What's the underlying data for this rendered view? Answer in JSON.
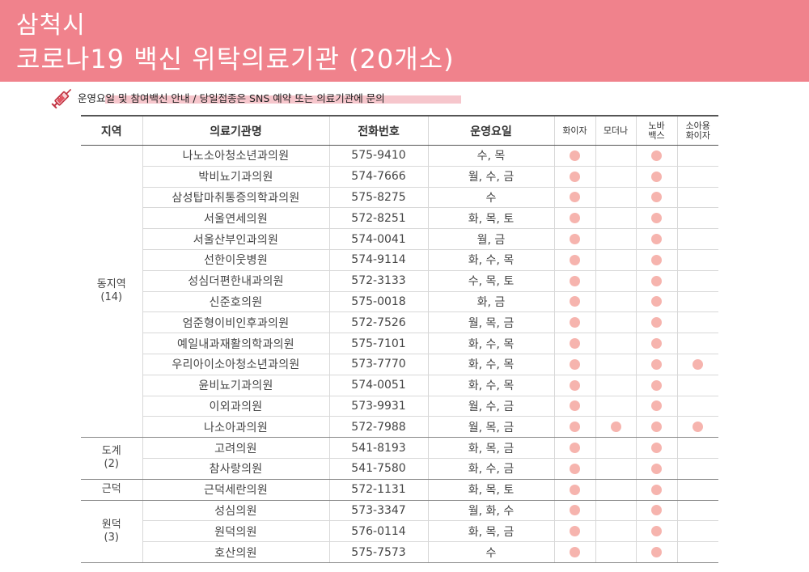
{
  "banner": {
    "line1": "삼척시",
    "line2": "코로나19 백신 위탁의료기관 (20개소)"
  },
  "notice": {
    "text": "운영요일 및 참여백신 안내 / 당일접종은 SNS 예약 또는 의료기관에 문의",
    "icon": "syringe-icon"
  },
  "colors": {
    "banner": "#f0828c",
    "dot": "#f6b4ae"
  },
  "headers": {
    "region": "지역",
    "name": "의료기관명",
    "phone": "전화번호",
    "days": "운영요일",
    "pfizer": "화이자",
    "moderna": "모더나",
    "novavax": "노바\n백스",
    "pfizer_child": "소아용\n화이자"
  },
  "groups": [
    {
      "region": "동지역\n(14)",
      "rows": [
        {
          "name": "나노소아청소년과의원",
          "phone": "575-9410",
          "days": "수, 목",
          "v": [
            1,
            0,
            1,
            0
          ]
        },
        {
          "name": "박비뇨기과의원",
          "phone": "574-7666",
          "days": "월, 수, 금",
          "v": [
            1,
            0,
            1,
            0
          ]
        },
        {
          "name": "삼성탑마취통증의학과의원",
          "phone": "575-8275",
          "days": "수",
          "v": [
            1,
            0,
            1,
            0
          ]
        },
        {
          "name": "서울연세의원",
          "phone": "572-8251",
          "days": "화, 목, 토",
          "v": [
            1,
            0,
            1,
            0
          ]
        },
        {
          "name": "서울산부인과의원",
          "phone": "574-0041",
          "days": "월, 금",
          "v": [
            1,
            0,
            1,
            0
          ]
        },
        {
          "name": "선한이웃병원",
          "phone": "574-9114",
          "days": "화, 수, 목",
          "v": [
            1,
            0,
            1,
            0
          ]
        },
        {
          "name": "성심더편한내과의원",
          "phone": "572-3133",
          "days": "수, 목, 토",
          "v": [
            1,
            0,
            1,
            0
          ]
        },
        {
          "name": "신준호의원",
          "phone": "575-0018",
          "days": "화, 금",
          "v": [
            1,
            0,
            1,
            0
          ]
        },
        {
          "name": "엄준형이비인후과의원",
          "phone": "572-7526",
          "days": "월, 목, 금",
          "v": [
            1,
            0,
            1,
            0
          ]
        },
        {
          "name": "예일내과재활의학과의원",
          "phone": "575-7101",
          "days": "화, 수, 목",
          "v": [
            1,
            0,
            1,
            0
          ]
        },
        {
          "name": "우리아이소아청소년과의원",
          "phone": "573-7770",
          "days": "화, 수, 목",
          "v": [
            1,
            0,
            1,
            1
          ]
        },
        {
          "name": "윤비뇨기과의원",
          "phone": "574-0051",
          "days": "화, 수, 목",
          "v": [
            1,
            0,
            1,
            0
          ]
        },
        {
          "name": "이외과의원",
          "phone": "573-9931",
          "days": "월, 수, 금",
          "v": [
            1,
            0,
            1,
            0
          ]
        },
        {
          "name": "나소아과의원",
          "phone": "572-7988",
          "days": "월, 목, 금",
          "v": [
            1,
            1,
            1,
            1
          ]
        }
      ]
    },
    {
      "region": "도계\n(2)",
      "rows": [
        {
          "name": "고려의원",
          "phone": "541-8193",
          "days": "화, 목, 금",
          "v": [
            1,
            0,
            1,
            0
          ]
        },
        {
          "name": "참사랑의원",
          "phone": "541-7580",
          "days": "화, 수, 금",
          "v": [
            1,
            0,
            1,
            0
          ]
        }
      ]
    },
    {
      "region": "근덕",
      "rows": [
        {
          "name": "근덕세란의원",
          "phone": "572-1131",
          "days": "화, 목, 토",
          "v": [
            1,
            0,
            1,
            0
          ]
        }
      ]
    },
    {
      "region": "원덕\n(3)",
      "rows": [
        {
          "name": "성심의원",
          "phone": "573-3347",
          "days": "월, 화, 수",
          "v": [
            1,
            0,
            1,
            0
          ]
        },
        {
          "name": "원덕의원",
          "phone": "576-0114",
          "days": "화, 목, 금",
          "v": [
            1,
            0,
            1,
            0
          ]
        },
        {
          "name": "호산의원",
          "phone": "575-7573",
          "days": "수",
          "v": [
            1,
            0,
            1,
            0
          ]
        }
      ]
    }
  ]
}
